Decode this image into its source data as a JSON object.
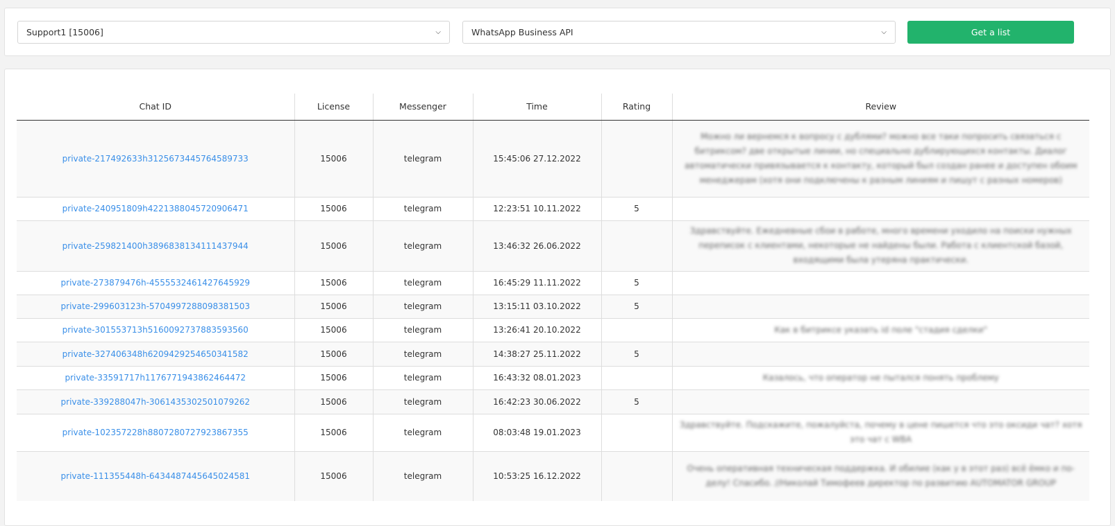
{
  "filters": {
    "operator": "Support1 [15006]",
    "channel": "WhatsApp Business API",
    "button": "Get a list"
  },
  "colors": {
    "accent": "#22b36c",
    "link": "#3a8fe8"
  },
  "table": {
    "headers": [
      "Chat ID",
      "License",
      "Messenger",
      "Time",
      "Rating",
      "Review"
    ],
    "rows": [
      {
        "id": "private-217492633h3125673445764589733",
        "license": "15006",
        "messenger": "telegram",
        "time": "15:45:06 27.12.2022",
        "rating": "",
        "review": "Можно ли вернемся к вопросу с дублями? можно все таки попросить связаться с битриксом? две открытые линии, но специально дублирующихся контакты. Диалог автоматически привязывается к контакту, который был создан ранее и доступен обоим менеджерам (хотя они подключены к разным линиям и пишут с разных номеров)",
        "h": 111
      },
      {
        "id": "private-240951809h4221388045720906471",
        "license": "15006",
        "messenger": "telegram",
        "time": "12:23:51 10.11.2022",
        "rating": "5",
        "review": "",
        "h": 34
      },
      {
        "id": "private-259821400h3896838134111437944",
        "license": "15006",
        "messenger": "telegram",
        "time": "13:46:32 26.06.2022",
        "rating": "",
        "review": "Здравствуйте. Ежедневные сбои в работе, много времени уходило на поиски нужных переписок с клиентами, некоторые не найдены были. Работа с клиентской базой, входящими была утеряна практически.",
        "h": 73
      },
      {
        "id": "private-273879476h-4555532461427645929",
        "license": "15006",
        "messenger": "telegram",
        "time": "16:45:29 11.11.2022",
        "rating": "5",
        "review": "",
        "h": 34
      },
      {
        "id": "private-299603123h-5704997288098381503",
        "license": "15006",
        "messenger": "telegram",
        "time": "13:15:11 03.10.2022",
        "rating": "5",
        "review": "",
        "h": 34
      },
      {
        "id": "private-301553713h5160092737883593560",
        "license": "15006",
        "messenger": "telegram",
        "time": "13:26:41 20.10.2022",
        "rating": "",
        "review": "Как в битриксе указать id поле \"стадия сделки\"",
        "h": 34
      },
      {
        "id": "private-327406348h6209429254650341582",
        "license": "15006",
        "messenger": "telegram",
        "time": "14:38:27 25.11.2022",
        "rating": "5",
        "review": "",
        "h": 35
      },
      {
        "id": "private-33591717h1176771943862464472",
        "license": "15006",
        "messenger": "telegram",
        "time": "16:43:32 08.01.2023",
        "rating": "",
        "review": "Казалось, что оператор не пытался понять проблему",
        "h": 34
      },
      {
        "id": "private-339288047h-3061435302501079262",
        "license": "15006",
        "messenger": "telegram",
        "time": "16:42:23 30.06.2022",
        "rating": "5",
        "review": "",
        "h": 35
      },
      {
        "id": "private-102357228h8807280727923867355",
        "license": "15006",
        "messenger": "telegram",
        "time": "08:03:48 19.01.2023",
        "rating": "",
        "review": "Здравствуйте. Подскажите, пожалуйста, почему в цене пишется что это оксиди чат? хотя это чат с WBA",
        "h": 54
      },
      {
        "id": "private-111355448h-6434487445645024581",
        "license": "15006",
        "messenger": "telegram",
        "time": "10:53:25 16.12.2022",
        "rating": "",
        "review": "Очень оперативная техническая поддержка. И обилие (как у в этот раз) всё ёмко и по-делу! Спасибо. //Николай Тимофеев директор по развитию AUTOMATOR GROUP",
        "h": 72
      }
    ]
  }
}
